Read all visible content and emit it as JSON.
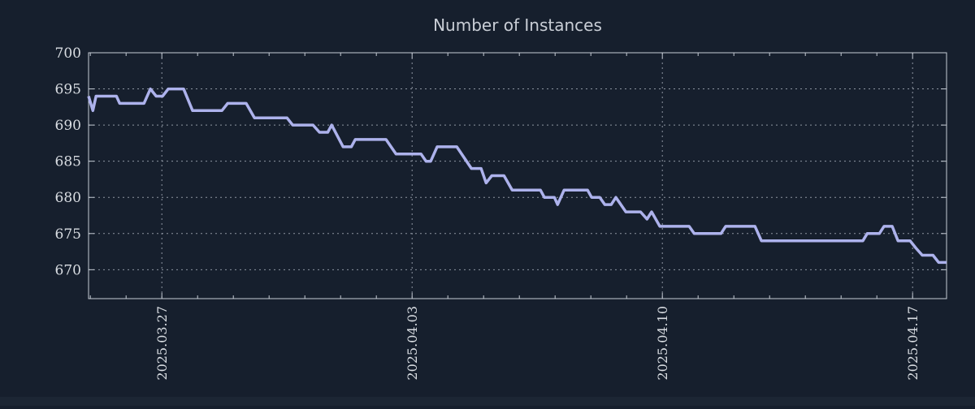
{
  "title": "Number of Instances",
  "colors": {
    "background": "#161f2d",
    "footer_strip": "#1c2634",
    "line": "#adb2ec",
    "grid": "#8e96a2",
    "axis": "#c6ccd5",
    "tick_label": "#d9dde2",
    "title_color": "#c9ced6"
  },
  "chart_data": {
    "type": "line",
    "title": "Number of Instances",
    "grid": true,
    "legend": "none",
    "x_axis": {
      "unit": "days relative to 2025.03.27",
      "range_days": [
        -2.05,
        21.95
      ],
      "major_ticks": [
        {
          "label": "2025.03.27",
          "t": 0
        },
        {
          "label": "2025.04.03",
          "t": 7
        },
        {
          "label": "2025.04.10",
          "t": 14
        },
        {
          "label": "2025.04.17",
          "t": 21
        }
      ],
      "minor_tick_interval_days": 1
    },
    "y_axis": {
      "range": [
        666,
        700
      ],
      "tick_values": [
        670,
        675,
        680,
        685,
        690,
        695,
        700
      ],
      "tick_labels": [
        "670",
        "675",
        "680",
        "685",
        "690",
        "695",
        "700"
      ]
    },
    "series": [
      {
        "name": "instances",
        "points": [
          [
            -2.05,
            694
          ],
          [
            -1.93,
            692
          ],
          [
            -1.84,
            694
          ],
          [
            -1.27,
            694
          ],
          [
            -1.18,
            693
          ],
          [
            -0.5,
            693
          ],
          [
            -0.32,
            695
          ],
          [
            -0.16,
            694
          ],
          [
            0.02,
            694
          ],
          [
            0.18,
            695
          ],
          [
            0.61,
            695
          ],
          [
            0.86,
            692
          ],
          [
            1.68,
            692
          ],
          [
            1.84,
            693
          ],
          [
            2.36,
            693
          ],
          [
            2.59,
            691
          ],
          [
            3.5,
            691
          ],
          [
            3.66,
            690
          ],
          [
            4.23,
            690
          ],
          [
            4.41,
            689
          ],
          [
            4.64,
            689
          ],
          [
            4.75,
            690
          ],
          [
            5.07,
            687
          ],
          [
            5.3,
            687
          ],
          [
            5.41,
            688
          ],
          [
            6.27,
            688
          ],
          [
            6.55,
            686
          ],
          [
            7.25,
            686
          ],
          [
            7.39,
            685
          ],
          [
            7.52,
            685
          ],
          [
            7.7,
            687
          ],
          [
            8.25,
            687
          ],
          [
            8.66,
            684
          ],
          [
            8.93,
            684
          ],
          [
            9.07,
            682
          ],
          [
            9.23,
            683
          ],
          [
            9.57,
            683
          ],
          [
            9.8,
            681
          ],
          [
            10.59,
            681
          ],
          [
            10.7,
            680
          ],
          [
            10.98,
            680
          ],
          [
            11.07,
            679
          ],
          [
            11.25,
            681
          ],
          [
            11.91,
            681
          ],
          [
            12.02,
            680
          ],
          [
            12.25,
            680
          ],
          [
            12.39,
            679
          ],
          [
            12.57,
            679
          ],
          [
            12.7,
            680
          ],
          [
            12.98,
            678
          ],
          [
            13.39,
            678
          ],
          [
            13.57,
            677
          ],
          [
            13.7,
            678
          ],
          [
            13.93,
            676
          ],
          [
            14.75,
            676
          ],
          [
            14.89,
            675
          ],
          [
            15.64,
            675
          ],
          [
            15.77,
            676
          ],
          [
            16.59,
            676
          ],
          [
            16.77,
            674
          ],
          [
            19.61,
            674
          ],
          [
            19.73,
            675
          ],
          [
            20.07,
            675
          ],
          [
            20.2,
            676
          ],
          [
            20.43,
            676
          ],
          [
            20.59,
            674
          ],
          [
            20.93,
            674
          ],
          [
            21.09,
            673
          ],
          [
            21.27,
            672
          ],
          [
            21.57,
            672
          ],
          [
            21.73,
            671
          ],
          [
            21.95,
            671
          ]
        ]
      }
    ]
  }
}
